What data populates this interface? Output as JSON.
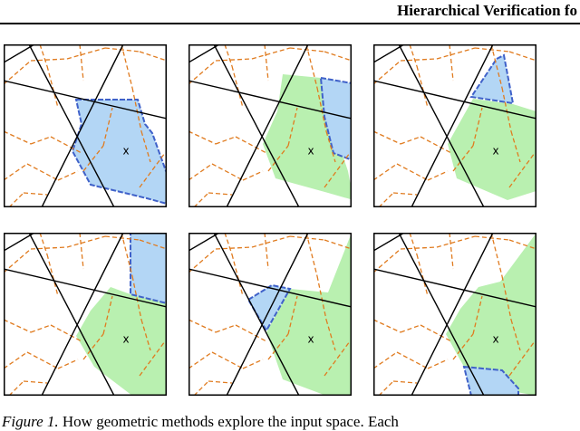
{
  "header": {
    "title": "Hierarchical Verification fo"
  },
  "figure": {
    "panels": [
      {
        "name": "panel-1",
        "blue": [
          [
            80,
            61
          ],
          [
            148,
            61
          ],
          [
            156,
            88
          ],
          [
            164,
            98
          ],
          [
            182,
            148
          ],
          [
            180,
            176
          ],
          [
            158,
            170
          ],
          [
            96,
            155
          ],
          [
            76,
            118
          ],
          [
            86,
            88
          ]
        ],
        "green": [],
        "center": "x"
      },
      {
        "name": "panel-2",
        "blue": [
          [
            146,
            37
          ],
          [
            186,
            44
          ],
          [
            186,
            130
          ],
          [
            160,
            120
          ],
          [
            150,
            80
          ]
        ],
        "green": [
          [
            104,
            33
          ],
          [
            146,
            37
          ],
          [
            156,
            80
          ],
          [
            176,
            140
          ],
          [
            182,
            172
          ],
          [
            154,
            164
          ],
          [
            96,
            148
          ],
          [
            82,
            110
          ],
          [
            98,
            74
          ]
        ],
        "center": "x"
      },
      {
        "name": "panel-3",
        "blue": [
          [
            136,
            16
          ],
          [
            144,
            12
          ],
          [
            154,
            65
          ],
          [
            108,
            58
          ]
        ],
        "green": [
          [
            110,
            60
          ],
          [
            154,
            66
          ],
          [
            186,
            76
          ],
          [
            186,
            160
          ],
          [
            148,
            172
          ],
          [
            92,
            148
          ],
          [
            82,
            110
          ]
        ],
        "center": "x"
      },
      {
        "name": "panel-4",
        "blue": [
          [
            140,
            0
          ],
          [
            180,
            0
          ],
          [
            180,
            78
          ],
          [
            140,
            68
          ]
        ],
        "green": [
          [
            118,
            60
          ],
          [
            140,
            68
          ],
          [
            180,
            78
          ],
          [
            180,
            180
          ],
          [
            142,
            180
          ],
          [
            100,
            148
          ],
          [
            80,
            114
          ],
          [
            96,
            86
          ]
        ],
        "center": "x"
      },
      {
        "name": "panel-5",
        "blue": [
          [
            66,
            74
          ],
          [
            92,
            58
          ],
          [
            112,
            62
          ],
          [
            86,
            108
          ]
        ],
        "green": [
          [
            112,
            62
          ],
          [
            154,
            66
          ],
          [
            180,
            0
          ],
          [
            180,
            180
          ],
          [
            152,
            180
          ],
          [
            104,
            162
          ],
          [
            86,
            110
          ]
        ],
        "center": "x"
      },
      {
        "name": "panel-6",
        "blue": [
          [
            100,
            148
          ],
          [
            142,
            152
          ],
          [
            160,
            172
          ],
          [
            160,
            180
          ],
          [
            108,
            180
          ]
        ],
        "green": [
          [
            116,
            60
          ],
          [
            140,
            54
          ],
          [
            180,
            0
          ],
          [
            180,
            180
          ],
          [
            158,
            176
          ],
          [
            142,
            152
          ],
          [
            100,
            148
          ],
          [
            80,
            112
          ],
          [
            96,
            84
          ]
        ],
        "center": "x"
      }
    ]
  },
  "caption": {
    "lead": "Figure 1.",
    "text": "How geometric methods explore the input space. Each"
  }
}
